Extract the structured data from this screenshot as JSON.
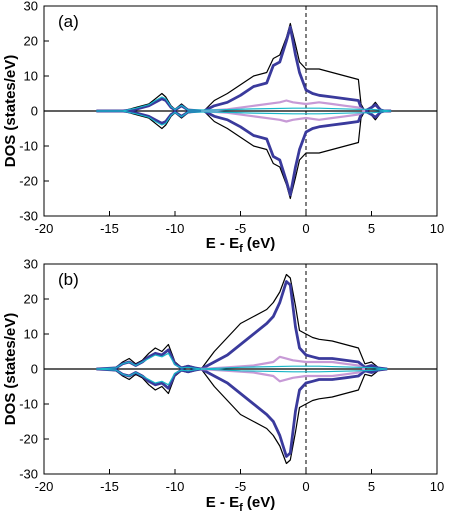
{
  "colors": {
    "total": "#000000",
    "main": "#3a3a9c",
    "lilac": "#c79ad6",
    "cyan": "#18b6c8",
    "fermi": "#000000"
  },
  "chart_data": [
    {
      "type": "line",
      "panel_label": "(a)",
      "xlabel": "E - E",
      "xlabel_sub": "f",
      "xlabel_unit": "(eV)",
      "ylabel": "DOS (states/eV)",
      "xlim": [
        -20,
        10
      ],
      "ylim": [
        -30,
        30
      ],
      "xticks": [
        "-20",
        "-15",
        "-10",
        "-5",
        "0",
        "5",
        "10"
      ],
      "yticks": [
        "30",
        "20",
        "10",
        "0",
        "-10",
        "-20",
        "-30"
      ],
      "fermi_line_x": 0,
      "series": [
        {
          "color_key": "total",
          "width": 1.2,
          "x": [
            -16,
            -14,
            -13,
            -12,
            -11.5,
            -11,
            -10.7,
            -10.3,
            -10,
            -9.5,
            -9,
            -7.8,
            -7,
            -6,
            -5,
            -4,
            -3,
            -2.5,
            -2,
            -1.5,
            -1.2,
            -0.8,
            -0.5,
            0,
            0.5,
            1,
            2,
            3,
            4,
            4.2,
            4.5,
            5,
            5.3,
            5.7,
            6,
            6.5
          ],
          "y": [
            0,
            0,
            1,
            2,
            3.5,
            5,
            4,
            1.5,
            0.5,
            2,
            0.5,
            0,
            3,
            5,
            7.5,
            10,
            11,
            15,
            16,
            21,
            25,
            19,
            14,
            12,
            12,
            12,
            11,
            10,
            9,
            2,
            0,
            1.2,
            2.5,
            0.5,
            0,
            0
          ]
        },
        {
          "color_key": "main",
          "width": 2.8,
          "x": [
            -16,
            -14,
            -13,
            -12,
            -11.5,
            -11,
            -10.7,
            -10.3,
            -10,
            -9.5,
            -9,
            -7.8,
            -7,
            -6,
            -5,
            -4,
            -3,
            -2.5,
            -2,
            -1.5,
            -1.2,
            -0.8,
            -0.5,
            0,
            0.5,
            1,
            2,
            3,
            4,
            4.2,
            4.5,
            5,
            5.3,
            5.7,
            6,
            6.5
          ],
          "y": [
            0,
            0,
            0.5,
            1.5,
            2.5,
            3.5,
            3,
            1,
            0.3,
            1.5,
            0.3,
            0,
            1.5,
            2.5,
            4.5,
            7,
            8,
            13,
            14,
            20,
            24,
            16,
            11,
            6,
            5,
            4.5,
            4,
            3.5,
            3,
            1,
            0,
            1,
            1.8,
            0.3,
            0,
            0
          ]
        },
        {
          "color_key": "lilac",
          "width": 2.2,
          "x": [
            -8,
            -6,
            -4,
            -2,
            -1.5,
            -1,
            0,
            1,
            2,
            3,
            4,
            4.5
          ],
          "y": [
            0,
            0.5,
            1.5,
            2.5,
            3,
            2.5,
            2,
            2.5,
            2,
            1.5,
            1,
            0
          ]
        },
        {
          "color_key": "cyan",
          "width": 1.2,
          "x": [
            -16,
            -14,
            -13,
            -12,
            -11.5,
            -11,
            -10.7,
            -10.3,
            -10,
            -9.5,
            -9,
            -7,
            -4,
            -1,
            1,
            4,
            5,
            6.5
          ],
          "y": [
            0,
            0,
            0.8,
            1.8,
            3,
            4,
            3.5,
            1.2,
            0.4,
            1.6,
            0.3,
            0.3,
            0.6,
            0.8,
            0.8,
            0.5,
            0.5,
            0
          ]
        }
      ]
    },
    {
      "type": "line",
      "panel_label": "(b)",
      "xlabel": "E - E",
      "xlabel_sub": "f",
      "xlabel_unit": "(eV)",
      "ylabel": "DOS (states/eV)",
      "xlim": [
        -20,
        10
      ],
      "ylim": [
        -30,
        30
      ],
      "xticks": [
        "-20",
        "-15",
        "-10",
        "-5",
        "0",
        "5",
        "10"
      ],
      "yticks": [
        "30",
        "20",
        "10",
        "0",
        "-10",
        "-20",
        "-30"
      ],
      "fermi_line_x": 0,
      "series": [
        {
          "color_key": "total",
          "width": 1.2,
          "x": [
            -16,
            -14.5,
            -14,
            -13.5,
            -13,
            -12.5,
            -12,
            -11.5,
            -11,
            -10.5,
            -10,
            -9.5,
            -9,
            -8.5,
            -8,
            -7,
            -6,
            -5,
            -4,
            -3,
            -2.5,
            -2,
            -1.5,
            -1.2,
            -0.8,
            -0.5,
            0,
            0.5,
            1,
            2,
            3,
            4,
            4.5,
            5,
            5.5,
            6.2
          ],
          "y": [
            0,
            0.5,
            2,
            3,
            1.5,
            2.5,
            4.5,
            6,
            5,
            7,
            2,
            0.5,
            1,
            0.5,
            0,
            5,
            9,
            13,
            15,
            17,
            19,
            22,
            27,
            26,
            18,
            11,
            10,
            9,
            8.5,
            8,
            7,
            6,
            1.5,
            2,
            0.5,
            0
          ]
        },
        {
          "color_key": "main",
          "width": 2.8,
          "x": [
            -16,
            -14.5,
            -14,
            -13.5,
            -13,
            -12.5,
            -12,
            -11.5,
            -11,
            -10.5,
            -10,
            -9.5,
            -9,
            -8.5,
            -8,
            -7,
            -6,
            -5,
            -4,
            -3,
            -2.5,
            -2,
            -1.5,
            -1.2,
            -0.8,
            -0.5,
            0,
            0.5,
            1,
            2,
            3,
            4,
            4.5,
            5,
            5.5,
            6.2
          ],
          "y": [
            0,
            0.3,
            1.5,
            2,
            1,
            2,
            3.5,
            4.5,
            4,
            5.5,
            1.5,
            0.3,
            0.8,
            0.3,
            0,
            2,
            4,
            7,
            10,
            13,
            15,
            19,
            25,
            24,
            12,
            6,
            4,
            3.5,
            3,
            3,
            2.5,
            2,
            0.5,
            1,
            0.3,
            0
          ]
        },
        {
          "color_key": "lilac",
          "width": 2.2,
          "x": [
            -8,
            -6,
            -4,
            -2.5,
            -2,
            -1,
            0,
            1,
            2,
            3,
            4,
            4.5
          ],
          "y": [
            0,
            0.5,
            1,
            2,
            3.5,
            2.5,
            2,
            2,
            2,
            1.5,
            1,
            0
          ]
        },
        {
          "color_key": "cyan",
          "width": 1.2,
          "x": [
            -16,
            -14.5,
            -14,
            -13.5,
            -13,
            -12.5,
            -12,
            -11.5,
            -11,
            -10.5,
            -10,
            -9.5,
            -9,
            -8,
            -5,
            -1,
            1,
            4,
            5,
            6.2
          ],
          "y": [
            0,
            0.3,
            1.5,
            2,
            1,
            2,
            3,
            4,
            3.5,
            4.5,
            1.2,
            0.3,
            0.5,
            0,
            0.5,
            0.8,
            0.8,
            0.5,
            0.4,
            0
          ]
        }
      ]
    }
  ]
}
